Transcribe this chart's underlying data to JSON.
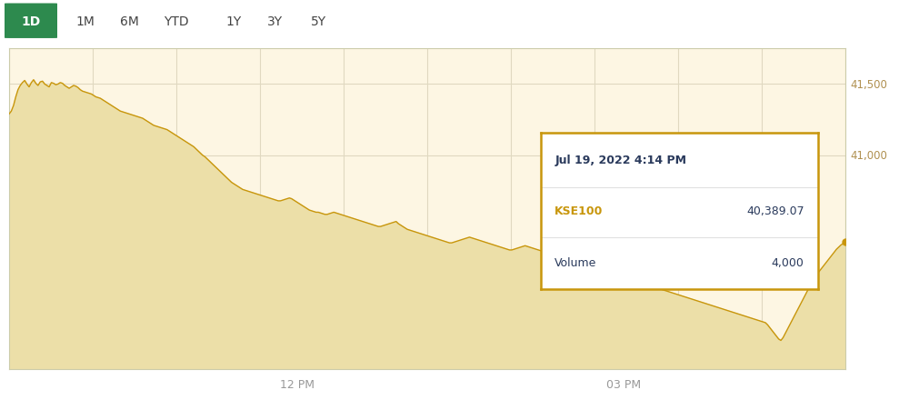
{
  "background_color": "#ffffff",
  "chart_bg_color": "#fdf6e3",
  "line_color": "#c8960c",
  "fill_color": "#ecdfa8",
  "grid_color": "#e0d8c0",
  "y_label_color": "#b09050",
  "x_label_color": "#999999",
  "ylim": [
    39500,
    41750
  ],
  "yticks": [
    41000,
    41500
  ],
  "ytick_labels": [
    "41,000",
    "41,500"
  ],
  "xtick_positions": [
    0.345,
    0.735
  ],
  "xtick_labels": [
    "12 PM",
    "03 PM"
  ],
  "tooltip": {
    "date": "Jul 19, 2022 4:14 PM",
    "kse100_label": "KSE100",
    "kse100_value": "40,389.07",
    "volume_label": "Volume",
    "volume_value": "4,000",
    "kse100_color": "#c8960c",
    "text_color": "#2a3a5c",
    "bg_color": "#ffffff",
    "border_color": "#c8960c"
  },
  "nav_buttons": [
    "1D",
    "1M",
    "6M",
    "YTD",
    "1Y",
    "3Y",
    "5Y"
  ],
  "nav_active": "1D",
  "nav_active_bg": "#2d8a4e",
  "nav_active_color": "#ffffff",
  "nav_inactive_color": "#444444",
  "end_dot_color": "#c8960c",
  "curve": [
    41290,
    41310,
    41350,
    41410,
    41460,
    41490,
    41510,
    41525,
    41500,
    41480,
    41510,
    41530,
    41505,
    41490,
    41515,
    41520,
    41500,
    41490,
    41480,
    41510,
    41505,
    41495,
    41500,
    41510,
    41505,
    41490,
    41480,
    41470,
    41480,
    41490,
    41485,
    41475,
    41460,
    41450,
    41445,
    41440,
    41435,
    41430,
    41420,
    41410,
    41405,
    41400,
    41390,
    41380,
    41370,
    41360,
    41350,
    41340,
    41330,
    41320,
    41310,
    41305,
    41300,
    41295,
    41290,
    41285,
    41280,
    41275,
    41270,
    41265,
    41260,
    41250,
    41240,
    41230,
    41220,
    41210,
    41205,
    41200,
    41195,
    41190,
    41185,
    41180,
    41170,
    41160,
    41150,
    41140,
    41130,
    41120,
    41110,
    41100,
    41090,
    41080,
    41070,
    41060,
    41045,
    41030,
    41015,
    41000,
    40990,
    40975,
    40960,
    40945,
    40930,
    40915,
    40900,
    40885,
    40870,
    40855,
    40840,
    40825,
    40810,
    40800,
    40790,
    40780,
    40770,
    40760,
    40755,
    40750,
    40745,
    40740,
    40735,
    40730,
    40725,
    40720,
    40715,
    40710,
    40705,
    40700,
    40695,
    40690,
    40685,
    40680,
    40680,
    40685,
    40690,
    40695,
    40700,
    40695,
    40685,
    40675,
    40665,
    40655,
    40645,
    40635,
    40625,
    40615,
    40610,
    40605,
    40600,
    40600,
    40595,
    40590,
    40585,
    40585,
    40590,
    40595,
    40600,
    40595,
    40590,
    40585,
    40580,
    40575,
    40570,
    40565,
    40560,
    40555,
    40550,
    40545,
    40540,
    40535,
    40530,
    40525,
    40520,
    40515,
    40510,
    40505,
    40500,
    40500,
    40505,
    40510,
    40515,
    40520,
    40525,
    40530,
    40535,
    40520,
    40510,
    40500,
    40490,
    40480,
    40475,
    40470,
    40465,
    40460,
    40455,
    40450,
    40445,
    40440,
    40435,
    40430,
    40425,
    40420,
    40415,
    40410,
    40405,
    40400,
    40395,
    40390,
    40385,
    40385,
    40390,
    40395,
    40400,
    40405,
    40410,
    40415,
    40420,
    40425,
    40420,
    40415,
    40410,
    40405,
    40400,
    40395,
    40390,
    40385,
    40380,
    40375,
    40370,
    40365,
    40360,
    40355,
    40350,
    40345,
    40340,
    40335,
    40335,
    40340,
    40345,
    40350,
    40355,
    40360,
    40365,
    40360,
    40355,
    40350,
    40345,
    40340,
    40335,
    40330,
    40325,
    40320,
    40315,
    40310,
    40305,
    40300,
    40295,
    40290,
    40285,
    40280,
    40275,
    40270,
    40265,
    40260,
    40255,
    40250,
    40245,
    40240,
    40235,
    40230,
    40225,
    40220,
    40215,
    40210,
    40205,
    40200,
    40195,
    40190,
    40185,
    40180,
    40175,
    40170,
    40165,
    40160,
    40155,
    40150,
    40145,
    40140,
    40135,
    40130,
    40125,
    40120,
    40115,
    40110,
    40105,
    40100,
    40095,
    40090,
    40085,
    40080,
    40075,
    40070,
    40065,
    40060,
    40055,
    40050,
    40045,
    40040,
    40035,
    40030,
    40025,
    40020,
    40015,
    40010,
    40005,
    40000,
    39995,
    39990,
    39985,
    39980,
    39975,
    39970,
    39965,
    39960,
    39955,
    39950,
    39945,
    39940,
    39935,
    39930,
    39925,
    39920,
    39915,
    39910,
    39905,
    39900,
    39895,
    39890,
    39885,
    39880,
    39875,
    39870,
    39865,
    39860,
    39855,
    39850,
    39845,
    39840,
    39835,
    39830,
    39825,
    39810,
    39790,
    39770,
    39750,
    39730,
    39710,
    39700,
    39720,
    39750,
    39780,
    39810,
    39840,
    39870,
    39900,
    39930,
    39960,
    39990,
    40020,
    40050,
    40080,
    40110,
    40140,
    40160,
    40180,
    40200,
    40220,
    40240,
    40260,
    40280,
    40300,
    40320,
    40340,
    40355,
    40370,
    40380,
    40389
  ]
}
